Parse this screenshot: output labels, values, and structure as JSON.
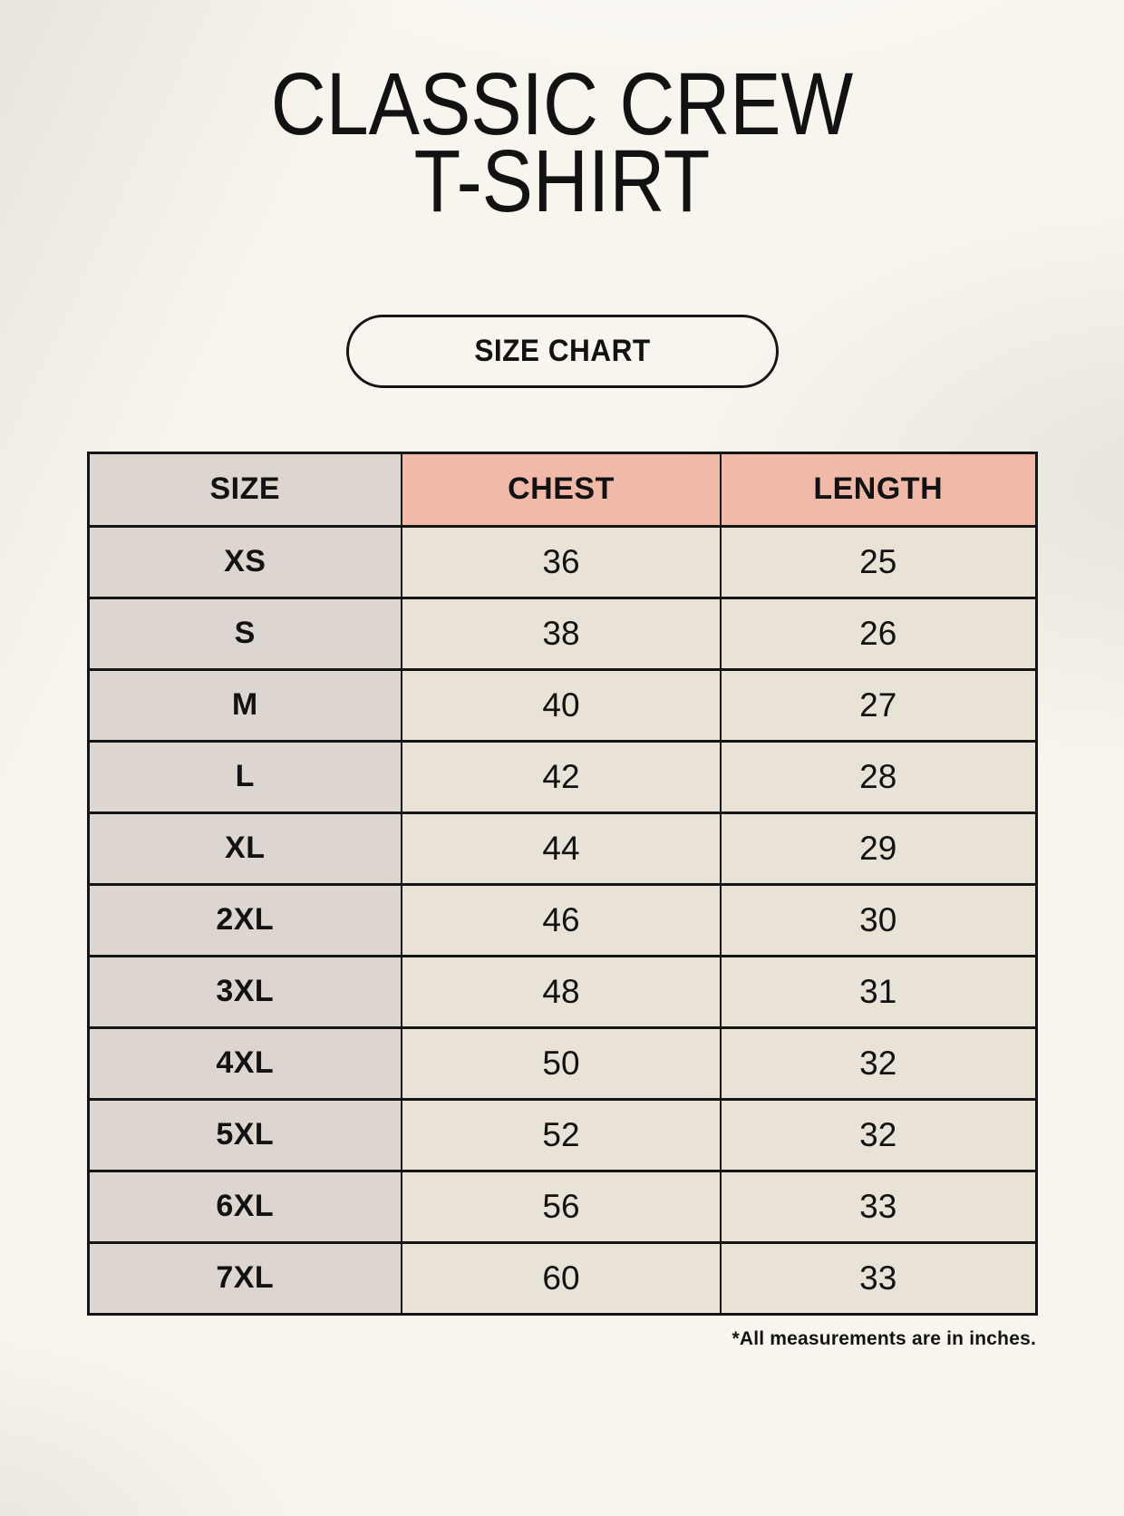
{
  "title": {
    "line1": "CLASSIC CREW",
    "line2": "T-SHIRT"
  },
  "button": {
    "label": "SIZE CHART"
  },
  "table": {
    "headers": [
      "SIZE",
      "CHEST",
      "LENGTH"
    ],
    "rows": [
      {
        "size": "XS",
        "chest": "36",
        "length": "25"
      },
      {
        "size": "S",
        "chest": "38",
        "length": "26"
      },
      {
        "size": "M",
        "chest": "40",
        "length": "27"
      },
      {
        "size": "L",
        "chest": "42",
        "length": "28"
      },
      {
        "size": "XL",
        "chest": "44",
        "length": "29"
      },
      {
        "size": "2XL",
        "chest": "46",
        "length": "30"
      },
      {
        "size": "3XL",
        "chest": "48",
        "length": "31"
      },
      {
        "size": "4XL",
        "chest": "50",
        "length": "32"
      },
      {
        "size": "5XL",
        "chest": "52",
        "length": "32"
      },
      {
        "size": "6XL",
        "chest": "56",
        "length": "33"
      },
      {
        "size": "7XL",
        "chest": "60",
        "length": "33"
      }
    ]
  },
  "footnote": "*All measurements are in inches.",
  "theme": {
    "page_bg": "#f8f5ee",
    "text_color": "#121212",
    "border_color": "#151515",
    "size_column_bg": "#ddd5cf",
    "measure_header_bg": "#f0b9a8",
    "data_cell_bg": "#e9e2d7"
  }
}
